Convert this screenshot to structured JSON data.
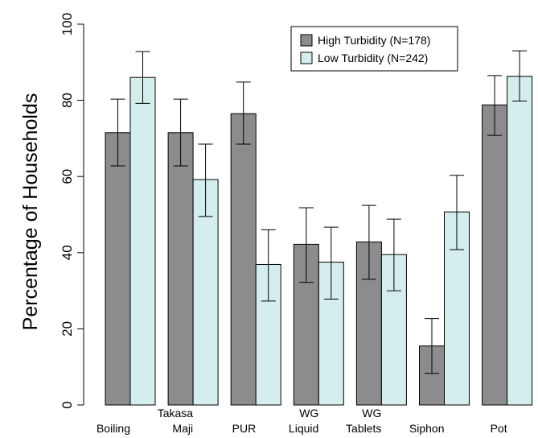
{
  "chart_data": {
    "type": "bar",
    "title": "",
    "xlabel": "",
    "ylabel": "Percentage of Households",
    "ylim": [
      0,
      100
    ],
    "yticks": [
      "0",
      "20",
      "40",
      "60",
      "80",
      "100"
    ],
    "grid": false,
    "legend_position": "top-right",
    "categories": [
      [
        "Boiling"
      ],
      [
        "Takasa",
        "Maji"
      ],
      [
        "PUR"
      ],
      [
        "WG",
        "Liquid"
      ],
      [
        "WG",
        "Tablets"
      ],
      [
        "Siphon"
      ],
      [
        "Pot"
      ]
    ],
    "series": [
      {
        "name": "High Turbidity (N=178)",
        "color": "#8c8c8c",
        "values": [
          71.5,
          71.5,
          76.5,
          42.2,
          42.8,
          15.5,
          78.8
        ],
        "error_low": [
          62.8,
          62.8,
          68.5,
          32.2,
          33.0,
          8.3,
          70.8
        ],
        "error_high": [
          80.3,
          80.3,
          84.8,
          51.8,
          52.4,
          22.7,
          86.5
        ]
      },
      {
        "name": "Low Turbidity (N=242)",
        "color": "#d4eeee",
        "values": [
          86.0,
          59.2,
          36.9,
          37.5,
          39.5,
          50.7,
          86.3
        ],
        "error_low": [
          79.2,
          49.5,
          27.3,
          27.8,
          30.0,
          40.8,
          79.8
        ],
        "error_high": [
          92.8,
          68.5,
          46.0,
          46.7,
          48.8,
          60.3,
          93.0
        ]
      }
    ]
  }
}
